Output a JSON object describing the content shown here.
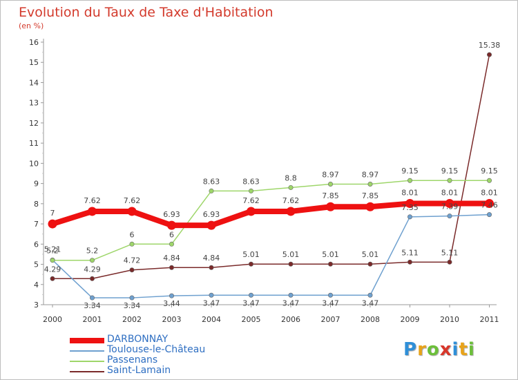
{
  "chart_data": {
    "type": "line",
    "title": "Evolution du Taux de Taxe d'Habitation",
    "subtitle": "(en %)",
    "xlabel": "",
    "ylabel": "",
    "categories": [
      "2000",
      "2001",
      "2002",
      "2003",
      "2004",
      "2005",
      "2006",
      "2007",
      "2008",
      "2009",
      "2010",
      "2011"
    ],
    "y_ticks": [
      3,
      4,
      5,
      6,
      7,
      8,
      9,
      10,
      11,
      12,
      13,
      14,
      15,
      16
    ],
    "ylim": [
      3,
      16
    ],
    "grid": false,
    "legend_position": "bottom-left",
    "series": [
      {
        "name": "DARBONNAY",
        "color": "#ee1111",
        "values": [
          7,
          7.62,
          7.62,
          6.93,
          6.93,
          7.62,
          7.62,
          7.85,
          7.85,
          8.01,
          8.01,
          8.01
        ],
        "labels": [
          "7",
          "7.62",
          "7.62",
          "6.93",
          "6.93",
          "7.62",
          "7.62",
          "7.85",
          "7.85",
          "8.01",
          "8.01",
          "8.01"
        ]
      },
      {
        "name": "Toulouse-le-Château",
        "color": "#6ea0cf",
        "values": [
          5.21,
          3.34,
          3.34,
          3.44,
          3.47,
          3.47,
          3.47,
          3.47,
          3.47,
          7.35,
          7.39,
          7.46
        ],
        "labels": [
          "5.21",
          "3.34",
          "3.34",
          "3.44",
          "3.47",
          "3.47",
          "3.47",
          "3.47",
          "3.47",
          "7.35",
          "7.39",
          "7.46"
        ]
      },
      {
        "name": "Passenans",
        "color": "#9ed66a",
        "values": [
          5.2,
          5.2,
          6,
          6,
          8.63,
          8.63,
          8.8,
          8.97,
          8.97,
          9.15,
          9.15,
          9.15
        ],
        "labels": [
          "5.2",
          "5.2",
          "6",
          "6",
          "8.63",
          "8.63",
          "8.8",
          "8.97",
          "8.97",
          "9.15",
          "9.15",
          "9.15"
        ]
      },
      {
        "name": "Saint-Lamain",
        "color": "#7a2a2a",
        "values": [
          4.29,
          4.29,
          4.72,
          4.84,
          4.84,
          5.01,
          5.01,
          5.01,
          5.01,
          5.11,
          5.11,
          15.38
        ],
        "labels": [
          "4.29",
          "4.29",
          "4.72",
          "4.84",
          "4.84",
          "5.01",
          "5.01",
          "5.01",
          "5.01",
          "5.11",
          "5.11",
          "15.38"
        ]
      }
    ]
  },
  "logo": {
    "letters": [
      "P",
      "r",
      "o",
      "x",
      "i",
      "t",
      "i"
    ],
    "colors": [
      "#2f8fd8",
      "#e8a31a",
      "#6cbf3a",
      "#d8362a",
      "#2f8fd8",
      "#e8a31a",
      "#6cbf3a"
    ]
  }
}
